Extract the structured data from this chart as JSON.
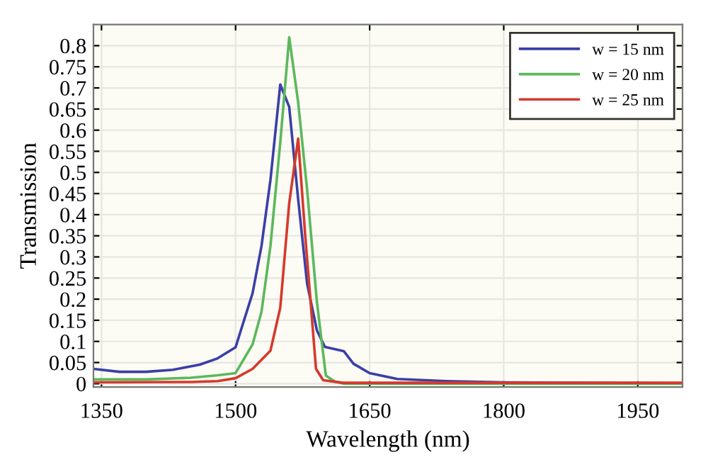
{
  "chart_data": {
    "type": "line",
    "xlabel": "Wavelength (nm)",
    "ylabel": "Transmission",
    "xlim": [
      1341,
      2000
    ],
    "xticks": [
      1350,
      1500,
      1650,
      1800,
      1950
    ],
    "ylim": [
      -0.008,
      0.85
    ],
    "yticks": [
      0,
      0.05,
      0.1,
      0.15,
      0.2,
      0.25,
      0.3,
      0.35,
      0.4,
      0.45,
      0.5,
      0.55,
      0.6,
      0.65,
      0.7,
      0.75,
      0.8
    ],
    "grid": true,
    "legend": "top right",
    "line_style": "solid",
    "marker": "none",
    "series": [
      {
        "name": "w = 15 nm",
        "color": "#3b3fa6",
        "x": [
          1341,
          1370,
          1400,
          1430,
          1460,
          1480,
          1500,
          1509,
          1519,
          1529,
          1539,
          1550,
          1560,
          1570,
          1580,
          1591,
          1600,
          1621,
          1632,
          1650,
          1681,
          1736,
          1800,
          1883,
          2000
        ],
        "values": [
          0.035,
          0.028,
          0.028,
          0.033,
          0.045,
          0.06,
          0.086,
          0.147,
          0.214,
          0.326,
          0.482,
          0.708,
          0.655,
          0.437,
          0.237,
          0.126,
          0.087,
          0.077,
          0.047,
          0.025,
          0.011,
          0.006,
          0.003,
          0.002,
          0.001
        ]
      },
      {
        "name": "w = 20 nm",
        "color": "#5cb85c",
        "x": [
          1341,
          1400,
          1450,
          1480,
          1500,
          1519,
          1529,
          1539,
          1550,
          1560,
          1570,
          1580,
          1591,
          1601,
          1611,
          1621,
          1700,
          2000
        ],
        "values": [
          0.01,
          0.01,
          0.014,
          0.02,
          0.025,
          0.093,
          0.17,
          0.326,
          0.571,
          0.82,
          0.666,
          0.46,
          0.193,
          0.019,
          0.005,
          0.0,
          0.0,
          0.0
        ]
      },
      {
        "name": "w = 25 nm",
        "color": "#d43a2c",
        "x": [
          1341,
          1450,
          1480,
          1500,
          1519,
          1539,
          1550,
          1560,
          1570,
          1578,
          1590,
          1598,
          1620,
          2000
        ],
        "values": [
          0.003,
          0.004,
          0.006,
          0.013,
          0.035,
          0.078,
          0.18,
          0.427,
          0.58,
          0.348,
          0.035,
          0.008,
          0.002,
          0.002
        ]
      }
    ]
  }
}
